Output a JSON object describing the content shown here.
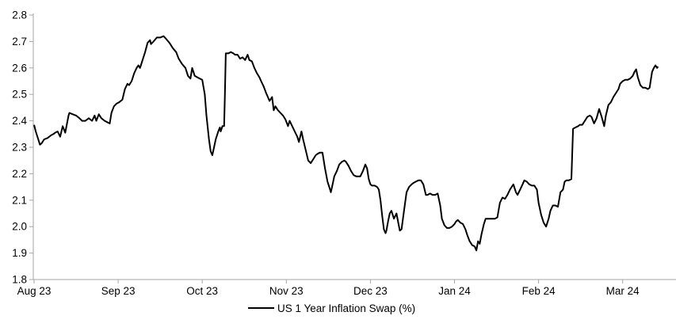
{
  "chart_data": {
    "type": "line",
    "title": "",
    "series_name": "US 1 Year Inflation Swap (%)",
    "x_tick_labels": [
      "Aug 23",
      "Sep 23",
      "Oct 23",
      "Nov 23",
      "Dec 23",
      "Jan 24",
      "Feb 24",
      "Mar 24"
    ],
    "x_unit": "months since Aug 2023 tick (fractional = days within month)",
    "y_tick_labels": [
      "1.8",
      "1.9",
      "2.0",
      "2.1",
      "2.2",
      "2.3",
      "2.4",
      "2.5",
      "2.6",
      "2.7",
      "2.8"
    ],
    "ylim": [
      1.8,
      2.8
    ],
    "y_tick_step": 0.1,
    "grid": false,
    "legend_position": "bottom-center",
    "line_color": "#000000",
    "axis_color": "#a6a6a6",
    "text_color": "#000000",
    "points": [
      [
        0.0,
        2.385
      ],
      [
        0.02,
        2.36
      ],
      [
        0.05,
        2.33
      ],
      [
        0.07,
        2.31
      ],
      [
        0.09,
        2.315
      ],
      [
        0.12,
        2.33
      ],
      [
        0.16,
        2.335
      ],
      [
        0.2,
        2.345
      ],
      [
        0.23,
        2.35
      ],
      [
        0.25,
        2.355
      ],
      [
        0.28,
        2.36
      ],
      [
        0.31,
        2.34
      ],
      [
        0.34,
        2.38
      ],
      [
        0.37,
        2.355
      ],
      [
        0.41,
        2.42
      ],
      [
        0.42,
        2.43
      ],
      [
        0.46,
        2.425
      ],
      [
        0.5,
        2.42
      ],
      [
        0.54,
        2.41
      ],
      [
        0.57,
        2.4
      ],
      [
        0.61,
        2.4
      ],
      [
        0.65,
        2.41
      ],
      [
        0.69,
        2.4
      ],
      [
        0.72,
        2.42
      ],
      [
        0.74,
        2.4
      ],
      [
        0.77,
        2.425
      ],
      [
        0.8,
        2.41
      ],
      [
        0.84,
        2.4
      ],
      [
        0.87,
        2.395
      ],
      [
        0.9,
        2.39
      ],
      [
        0.92,
        2.43
      ],
      [
        0.95,
        2.455
      ],
      [
        0.98,
        2.465
      ],
      [
        1.01,
        2.47
      ],
      [
        1.05,
        2.48
      ],
      [
        1.08,
        2.52
      ],
      [
        1.11,
        2.54
      ],
      [
        1.13,
        2.535
      ],
      [
        1.16,
        2.55
      ],
      [
        1.19,
        2.58
      ],
      [
        1.22,
        2.6
      ],
      [
        1.24,
        2.61
      ],
      [
        1.26,
        2.6
      ],
      [
        1.29,
        2.63
      ],
      [
        1.32,
        2.66
      ],
      [
        1.35,
        2.695
      ],
      [
        1.38,
        2.705
      ],
      [
        1.39,
        2.69
      ],
      [
        1.42,
        2.7
      ],
      [
        1.46,
        2.715
      ],
      [
        1.5,
        2.715
      ],
      [
        1.54,
        2.72
      ],
      [
        1.57,
        2.71
      ],
      [
        1.61,
        2.695
      ],
      [
        1.65,
        2.675
      ],
      [
        1.69,
        2.66
      ],
      [
        1.72,
        2.635
      ],
      [
        1.76,
        2.615
      ],
      [
        1.8,
        2.6
      ],
      [
        1.83,
        2.57
      ],
      [
        1.86,
        2.56
      ],
      [
        1.88,
        2.6
      ],
      [
        1.91,
        2.57
      ],
      [
        1.94,
        2.565
      ],
      [
        1.97,
        2.56
      ],
      [
        2.0,
        2.555
      ],
      [
        2.03,
        2.5
      ],
      [
        2.05,
        2.42
      ],
      [
        2.08,
        2.33
      ],
      [
        2.1,
        2.285
      ],
      [
        2.12,
        2.27
      ],
      [
        2.14,
        2.3
      ],
      [
        2.16,
        2.33
      ],
      [
        2.19,
        2.36
      ],
      [
        2.21,
        2.375
      ],
      [
        2.22,
        2.36
      ],
      [
        2.24,
        2.38
      ],
      [
        2.26,
        2.38
      ],
      [
        2.27,
        2.5
      ],
      [
        2.28,
        2.655
      ],
      [
        2.31,
        2.655
      ],
      [
        2.34,
        2.66
      ],
      [
        2.37,
        2.655
      ],
      [
        2.39,
        2.65
      ],
      [
        2.42,
        2.65
      ],
      [
        2.45,
        2.635
      ],
      [
        2.48,
        2.64
      ],
      [
        2.51,
        2.63
      ],
      [
        2.54,
        2.65
      ],
      [
        2.56,
        2.63
      ],
      [
        2.59,
        2.625
      ],
      [
        2.62,
        2.6
      ],
      [
        2.65,
        2.58
      ],
      [
        2.68,
        2.565
      ],
      [
        2.7,
        2.55
      ],
      [
        2.73,
        2.53
      ],
      [
        2.76,
        2.505
      ],
      [
        2.78,
        2.49
      ],
      [
        2.8,
        2.475
      ],
      [
        2.83,
        2.49
      ],
      [
        2.85,
        2.44
      ],
      [
        2.87,
        2.455
      ],
      [
        2.9,
        2.44
      ],
      [
        2.93,
        2.43
      ],
      [
        2.96,
        2.42
      ],
      [
        2.99,
        2.405
      ],
      [
        3.02,
        2.38
      ],
      [
        3.04,
        2.4
      ],
      [
        3.07,
        2.38
      ],
      [
        3.1,
        2.36
      ],
      [
        3.13,
        2.34
      ],
      [
        3.15,
        2.32
      ],
      [
        3.18,
        2.36
      ],
      [
        3.2,
        2.33
      ],
      [
        3.23,
        2.29
      ],
      [
        3.26,
        2.25
      ],
      [
        3.29,
        2.24
      ],
      [
        3.32,
        2.255
      ],
      [
        3.35,
        2.27
      ],
      [
        3.37,
        2.275
      ],
      [
        3.4,
        2.28
      ],
      [
        3.43,
        2.28
      ],
      [
        3.46,
        2.22
      ],
      [
        3.49,
        2.17
      ],
      [
        3.52,
        2.14
      ],
      [
        3.53,
        2.13
      ],
      [
        3.55,
        2.16
      ],
      [
        3.57,
        2.19
      ],
      [
        3.6,
        2.21
      ],
      [
        3.63,
        2.235
      ],
      [
        3.66,
        2.245
      ],
      [
        3.69,
        2.25
      ],
      [
        3.71,
        2.245
      ],
      [
        3.74,
        2.23
      ],
      [
        3.77,
        2.21
      ],
      [
        3.8,
        2.195
      ],
      [
        3.83,
        2.19
      ],
      [
        3.86,
        2.19
      ],
      [
        3.88,
        2.19
      ],
      [
        3.91,
        2.21
      ],
      [
        3.94,
        2.235
      ],
      [
        3.96,
        2.22
      ],
      [
        3.98,
        2.18
      ],
      [
        4.0,
        2.16
      ],
      [
        4.02,
        2.155
      ],
      [
        4.05,
        2.155
      ],
      [
        4.08,
        2.15
      ],
      [
        4.1,
        2.14
      ],
      [
        4.12,
        2.1
      ],
      [
        4.14,
        2.04
      ],
      [
        4.16,
        1.99
      ],
      [
        4.18,
        1.975
      ],
      [
        4.19,
        1.985
      ],
      [
        4.21,
        2.02
      ],
      [
        4.23,
        2.05
      ],
      [
        4.25,
        2.06
      ],
      [
        4.28,
        2.03
      ],
      [
        4.31,
        2.05
      ],
      [
        4.34,
        2.0
      ],
      [
        4.35,
        1.985
      ],
      [
        4.37,
        1.99
      ],
      [
        4.4,
        2.06
      ],
      [
        4.43,
        2.13
      ],
      [
        4.46,
        2.15
      ],
      [
        4.49,
        2.16
      ],
      [
        4.51,
        2.165
      ],
      [
        4.54,
        2.17
      ],
      [
        4.57,
        2.175
      ],
      [
        4.6,
        2.175
      ],
      [
        4.63,
        2.16
      ],
      [
        4.66,
        2.12
      ],
      [
        4.68,
        2.12
      ],
      [
        4.71,
        2.125
      ],
      [
        4.74,
        2.12
      ],
      [
        4.77,
        2.12
      ],
      [
        4.8,
        2.125
      ],
      [
        4.83,
        2.08
      ],
      [
        4.85,
        2.03
      ],
      [
        4.88,
        2.005
      ],
      [
        4.91,
        1.995
      ],
      [
        4.94,
        1.995
      ],
      [
        4.97,
        2.0
      ],
      [
        5.0,
        2.01
      ],
      [
        5.02,
        2.02
      ],
      [
        5.04,
        2.025
      ],
      [
        5.07,
        2.015
      ],
      [
        5.1,
        2.01
      ],
      [
        5.13,
        1.99
      ],
      [
        5.15,
        1.97
      ],
      [
        5.18,
        1.945
      ],
      [
        5.21,
        1.93
      ],
      [
        5.24,
        1.925
      ],
      [
        5.26,
        1.91
      ],
      [
        5.28,
        1.945
      ],
      [
        5.3,
        1.935
      ],
      [
        5.32,
        1.97
      ],
      [
        5.35,
        2.01
      ],
      [
        5.37,
        2.03
      ],
      [
        5.4,
        2.03
      ],
      [
        5.44,
        2.03
      ],
      [
        5.48,
        2.03
      ],
      [
        5.51,
        2.035
      ],
      [
        5.54,
        2.09
      ],
      [
        5.57,
        2.11
      ],
      [
        5.6,
        2.105
      ],
      [
        5.63,
        2.12
      ],
      [
        5.66,
        2.14
      ],
      [
        5.68,
        2.15
      ],
      [
        5.7,
        2.16
      ],
      [
        5.73,
        2.13
      ],
      [
        5.75,
        2.12
      ],
      [
        5.78,
        2.14
      ],
      [
        5.81,
        2.16
      ],
      [
        5.83,
        2.175
      ],
      [
        5.86,
        2.17
      ],
      [
        5.89,
        2.16
      ],
      [
        5.92,
        2.155
      ],
      [
        5.95,
        2.155
      ],
      [
        5.98,
        2.14
      ],
      [
        6.0,
        2.09
      ],
      [
        6.03,
        2.045
      ],
      [
        6.06,
        2.015
      ],
      [
        6.09,
        2.0
      ],
      [
        6.12,
        2.03
      ],
      [
        6.14,
        2.06
      ],
      [
        6.17,
        2.08
      ],
      [
        6.2,
        2.08
      ],
      [
        6.23,
        2.075
      ],
      [
        6.26,
        2.13
      ],
      [
        6.29,
        2.14
      ],
      [
        6.31,
        2.17
      ],
      [
        6.33,
        2.175
      ],
      [
        6.36,
        2.175
      ],
      [
        6.39,
        2.18
      ],
      [
        6.41,
        2.37
      ],
      [
        6.44,
        2.375
      ],
      [
        6.47,
        2.38
      ],
      [
        6.49,
        2.385
      ],
      [
        6.52,
        2.385
      ],
      [
        6.55,
        2.4
      ],
      [
        6.58,
        2.415
      ],
      [
        6.61,
        2.42
      ],
      [
        6.63,
        2.415
      ],
      [
        6.66,
        2.39
      ],
      [
        6.69,
        2.41
      ],
      [
        6.72,
        2.445
      ],
      [
        6.75,
        2.415
      ],
      [
        6.78,
        2.38
      ],
      [
        6.8,
        2.42
      ],
      [
        6.83,
        2.46
      ],
      [
        6.86,
        2.47
      ],
      [
        6.89,
        2.49
      ],
      [
        6.92,
        2.505
      ],
      [
        6.95,
        2.52
      ],
      [
        6.97,
        2.54
      ],
      [
        7.0,
        2.55
      ],
      [
        7.03,
        2.555
      ],
      [
        7.06,
        2.555
      ],
      [
        7.09,
        2.56
      ],
      [
        7.12,
        2.57
      ],
      [
        7.14,
        2.585
      ],
      [
        7.16,
        2.595
      ],
      [
        7.18,
        2.565
      ],
      [
        7.21,
        2.535
      ],
      [
        7.24,
        2.525
      ],
      [
        7.27,
        2.525
      ],
      [
        7.3,
        2.52
      ],
      [
        7.32,
        2.525
      ],
      [
        7.35,
        2.585
      ],
      [
        7.37,
        2.6
      ],
      [
        7.39,
        2.61
      ],
      [
        7.41,
        2.6
      ],
      [
        7.42,
        2.605
      ]
    ]
  }
}
